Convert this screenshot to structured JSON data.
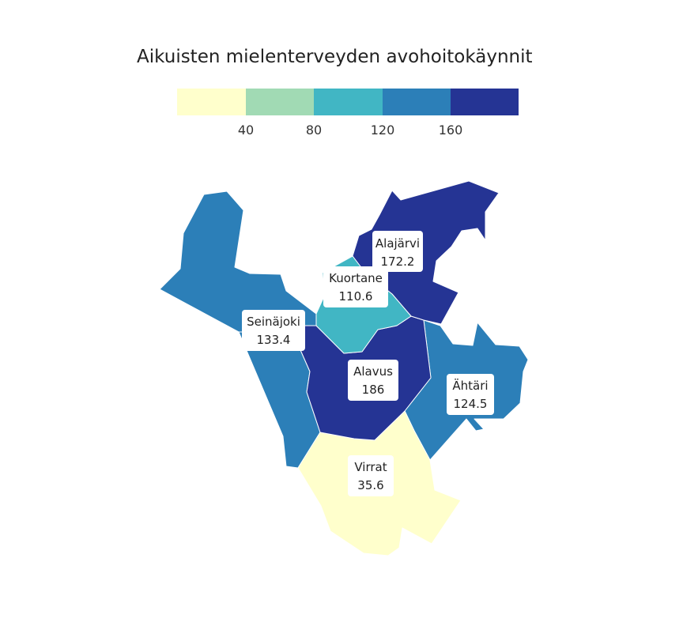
{
  "title": "Aikuisten mielenterveyden avohoitokäynnit",
  "legend": {
    "breaks": [
      "40",
      "80",
      "120",
      "160"
    ],
    "colors": [
      "#ffffcc",
      "#a1dab4",
      "#41b6c4",
      "#2c7fb8",
      "#253494"
    ]
  },
  "regions": [
    {
      "name": "Alajärvi",
      "value": "172.2",
      "color": "#253494"
    },
    {
      "name": "Kuortane",
      "value": "110.6",
      "color": "#41b6c4"
    },
    {
      "name": "Seinäjoki",
      "value": "133.4",
      "color": "#2c7fb8"
    },
    {
      "name": "Alavus",
      "value": "186",
      "color": "#253494"
    },
    {
      "name": "Ähtäri",
      "value": "124.5",
      "color": "#2c7fb8"
    },
    {
      "name": "Virrat",
      "value": "35.6",
      "color": "#ffffcc"
    }
  ]
}
